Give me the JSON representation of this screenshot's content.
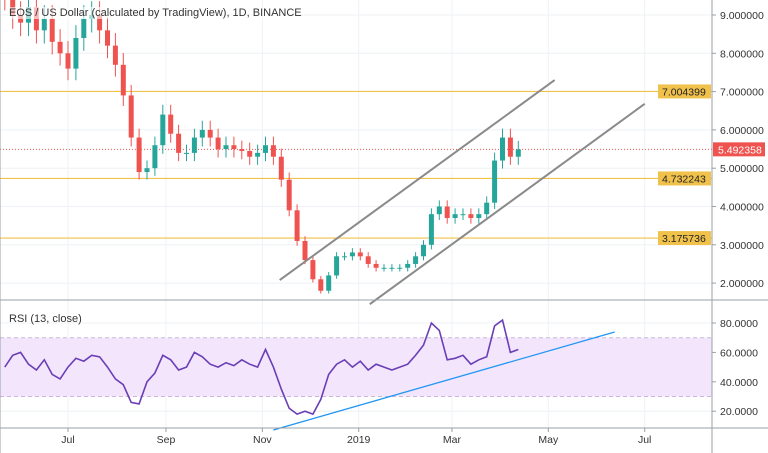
{
  "chart_data": {
    "type": "candlestick",
    "title": "EOS / US Dollar (calculated by TradingView), 1D, BINANCE",
    "price_axis": {
      "ticks": [
        "9.000000",
        "8.000000",
        "7.000000",
        "6.000000",
        "5.000000",
        "4.000000",
        "3.000000",
        "2.000000"
      ],
      "range": [
        1.35,
        9.4
      ]
    },
    "time_axis": {
      "ticks": [
        {
          "label": "Jul",
          "date": "2018-07-01"
        },
        {
          "label": "Sep",
          "date": "2018-09-01"
        },
        {
          "label": "Nov",
          "date": "2018-11-01"
        },
        {
          "label": "2019",
          "date": "2019-01-01"
        },
        {
          "label": "Mar",
          "date": "2019-03-01"
        },
        {
          "label": "May",
          "date": "2019-05-01"
        },
        {
          "label": "Jul",
          "date": "2019-07-01"
        }
      ],
      "range": [
        "2018-05-20",
        "2019-08-20"
      ]
    },
    "dates": [
      "2018-05-22",
      "2018-05-27",
      "2018-06-01",
      "2018-06-06",
      "2018-06-11",
      "2018-06-16",
      "2018-06-21",
      "2018-06-26",
      "2018-07-01",
      "2018-07-06",
      "2018-07-11",
      "2018-07-16",
      "2018-07-21",
      "2018-07-26",
      "2018-07-31",
      "2018-08-05",
      "2018-08-10",
      "2018-08-15",
      "2018-08-20",
      "2018-08-25",
      "2018-08-30",
      "2018-09-04",
      "2018-09-09",
      "2018-09-14",
      "2018-09-19",
      "2018-09-24",
      "2018-09-29",
      "2018-10-04",
      "2018-10-09",
      "2018-10-14",
      "2018-10-19",
      "2018-10-24",
      "2018-10-29",
      "2018-11-03",
      "2018-11-08",
      "2018-11-13",
      "2018-11-18",
      "2018-11-23",
      "2018-11-28",
      "2018-12-03",
      "2018-12-08",
      "2018-12-13",
      "2018-12-18",
      "2018-12-23",
      "2018-12-28",
      "2019-01-02",
      "2019-01-07",
      "2019-01-12",
      "2019-01-17",
      "2019-01-22",
      "2019-01-27",
      "2019-02-01",
      "2019-02-06",
      "2019-02-11",
      "2019-02-16",
      "2019-02-21",
      "2019-02-26",
      "2019-03-03",
      "2019-03-08",
      "2019-03-13",
      "2019-03-18",
      "2019-03-23",
      "2019-03-28",
      "2019-04-02",
      "2019-04-07",
      "2019-04-12"
    ],
    "close": [
      9.5,
      9.0,
      8.8,
      9.2,
      8.6,
      8.9,
      8.3,
      8.0,
      7.6,
      8.4,
      8.9,
      9.0,
      8.6,
      8.2,
      7.7,
      6.9,
      5.8,
      4.9,
      5.0,
      5.6,
      6.4,
      5.9,
      5.4,
      5.4,
      5.8,
      6.0,
      5.8,
      5.5,
      5.6,
      5.5,
      5.45,
      5.3,
      5.4,
      5.6,
      5.3,
      4.7,
      3.9,
      3.1,
      2.6,
      2.1,
      1.8,
      2.2,
      2.7,
      2.7,
      2.8,
      2.7,
      2.5,
      2.4,
      2.4,
      2.4,
      2.4,
      2.5,
      2.7,
      3.0,
      3.8,
      4.0,
      3.7,
      3.8,
      3.8,
      3.7,
      3.8,
      4.1,
      5.2,
      5.8,
      5.3,
      5.492358
    ],
    "up_color": "#26a69a",
    "down_color": "#ef5350",
    "horizontal_levels": [
      {
        "value": 7.004399,
        "label": "7.004399",
        "color": "#f0c14b"
      },
      {
        "value": 4.732243,
        "label": "4.732243",
        "color": "#f0c14b"
      },
      {
        "value": 3.175736,
        "label": "3.175736",
        "color": "#f0c14b"
      }
    ],
    "last_price": {
      "value": 5.492358,
      "label": "5.492358",
      "color": "#ef5350"
    },
    "channel_lines": [
      {
        "from": {
          "date": "2018-11-12",
          "value": 2.08
        },
        "to": {
          "date": "2019-05-05",
          "value": 7.3
        },
        "color": "#8a8a8a"
      },
      {
        "from": {
          "date": "2019-01-08",
          "value": 1.45
        },
        "to": {
          "date": "2019-07-01",
          "value": 6.68
        },
        "color": "#8a8a8a"
      }
    ],
    "rsi": {
      "title": "RSI (13, close)",
      "axis_ticks": [
        "80.0000",
        "60.0000",
        "40.0000",
        "20.0000"
      ],
      "range": [
        5,
        92
      ],
      "band": [
        30,
        70
      ],
      "band_color": "#f3e6fc",
      "line_color": "#6a3fb5",
      "values": [
        50,
        58,
        60,
        52,
        48,
        55,
        45,
        42,
        50,
        56,
        54,
        58,
        57,
        50,
        42,
        38,
        26,
        25,
        40,
        46,
        58,
        55,
        48,
        50,
        60,
        57,
        52,
        50,
        53,
        51,
        55,
        52,
        50,
        62,
        50,
        35,
        22,
        18,
        20,
        18,
        28,
        45,
        52,
        55,
        50,
        54,
        48,
        52,
        50,
        48,
        50,
        52,
        58,
        65,
        80,
        75,
        55,
        56,
        58,
        52,
        55,
        57,
        78,
        82,
        60,
        62
      ],
      "trend_line": {
        "from": {
          "date": "2018-11-08",
          "value": 7.2
        },
        "to": {
          "date": "2019-06-12",
          "value": 73.9
        },
        "color": "#2196f3"
      }
    }
  }
}
